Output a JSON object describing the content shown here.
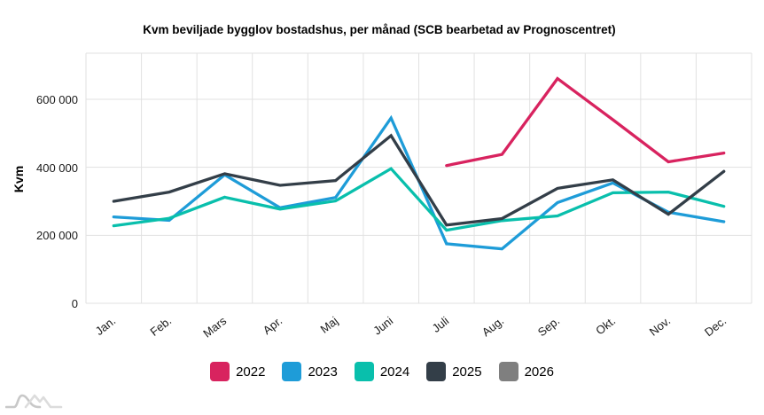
{
  "title": "Kvm beviljade bygglov bostadshus, per månad (SCB bearbetad av Prognoscentret)",
  "y_axis": {
    "label": "Kvm",
    "tick_labels": [
      "0",
      "200 000",
      "400 000",
      "600 000"
    ],
    "tick_values": [
      0,
      200000,
      400000,
      600000
    ]
  },
  "x_axis": {
    "tick_labels": [
      "Jan.",
      "Feb.",
      "Mars",
      "Apr.",
      "Maj",
      "Juni",
      "Juli",
      "Aug.",
      "Sep.",
      "Okt.",
      "Nov.",
      "Dec."
    ]
  },
  "legend": {
    "position": "bottom",
    "items": [
      {
        "label": "2022",
        "color": "#D8235F"
      },
      {
        "label": "2023",
        "color": "#1E9CD8"
      },
      {
        "label": "2024",
        "color": "#09BFAC"
      },
      {
        "label": "2025",
        "color": "#333E48"
      },
      {
        "label": "2026",
        "color": "#7F7F7F"
      }
    ]
  },
  "colors": {
    "grid": "#E1E1E1",
    "axis_text": "#1A1A1A",
    "title_text": "#000000",
    "watermark": "#C8C8C8",
    "watermark_light": "#DCDCDC"
  },
  "footer": {
    "watermark_icon": "mountains-logo"
  },
  "chart_data": {
    "type": "line",
    "title": "Kvm beviljade bygglov bostadshus, per månad (SCB bearbetad av Prognoscentret)",
    "xlabel": "",
    "ylabel": "Kvm",
    "ylim": [
      0,
      735000
    ],
    "ytick_step": 200000,
    "grid": true,
    "legend_position": "bottom",
    "categories": [
      "Jan.",
      "Feb.",
      "Mars",
      "Apr.",
      "Maj",
      "Juni",
      "Juli",
      "Aug.",
      "Sep.",
      "Okt.",
      "Nov.",
      "Dec."
    ],
    "series": [
      {
        "name": "2022",
        "color": "#D8235F",
        "values": [
          null,
          null,
          null,
          null,
          null,
          null,
          405000,
          438000,
          661000,
          540000,
          416000,
          442000
        ]
      },
      {
        "name": "2023",
        "color": "#1E9CD8",
        "values": [
          254000,
          244000,
          378000,
          281000,
          311000,
          545000,
          175000,
          160000,
          296000,
          354000,
          268000,
          240000
        ]
      },
      {
        "name": "2024",
        "color": "#09BFAC",
        "values": [
          228000,
          250000,
          312000,
          277000,
          301000,
          396000,
          215000,
          243000,
          257000,
          325000,
          327000,
          285000
        ]
      },
      {
        "name": "2025",
        "color": "#333E48",
        "values": [
          300000,
          327000,
          381000,
          347000,
          361000,
          493000,
          230000,
          249000,
          338000,
          363000,
          262000,
          388000
        ]
      },
      {
        "name": "2026",
        "color": "#7F7F7F",
        "values": [
          null,
          null,
          null,
          null,
          null,
          null,
          null,
          null,
          null,
          null,
          null,
          null
        ]
      }
    ]
  }
}
